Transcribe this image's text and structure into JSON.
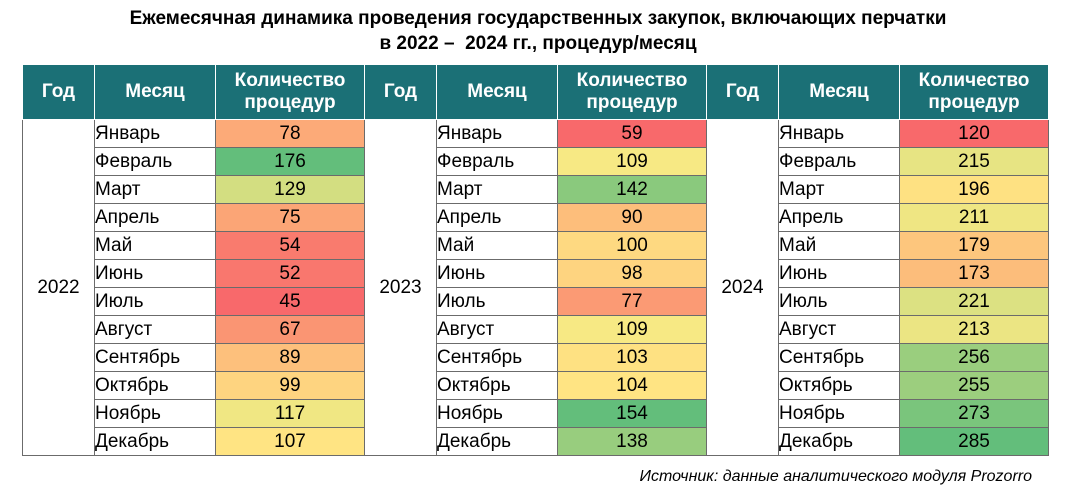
{
  "title": {
    "line1": "Ежемесячная динамика проведения государственных закупок, включающих перчатки",
    "line2": "в 2022 –  2024 гг., процедур/месяц"
  },
  "headers": {
    "year": "Год",
    "month": "Месяц",
    "count": "Количество процедур"
  },
  "source": "Источник: данные аналитического модуля Prozorro",
  "chart_data": {
    "type": "table",
    "months": [
      "Январь",
      "Февраль",
      "Март",
      "Апрель",
      "Май",
      "Июнь",
      "Июль",
      "Август",
      "Сентябрь",
      "Октябрь",
      "Ноябрь",
      "Декабрь"
    ],
    "series": [
      {
        "name": "2022",
        "values": [
          78,
          176,
          129,
          75,
          54,
          52,
          45,
          67,
          89,
          99,
          117,
          107
        ]
      },
      {
        "name": "2023",
        "values": [
          59,
          109,
          142,
          90,
          100,
          98,
          77,
          109,
          103,
          104,
          154,
          138
        ]
      },
      {
        "name": "2024",
        "values": [
          120,
          215,
          196,
          211,
          179,
          173,
          221,
          213,
          256,
          255,
          273,
          285
        ]
      }
    ],
    "color_scale": {
      "low": "#f8696b",
      "mid": "#ffeb84",
      "high": "#63be7b"
    }
  }
}
